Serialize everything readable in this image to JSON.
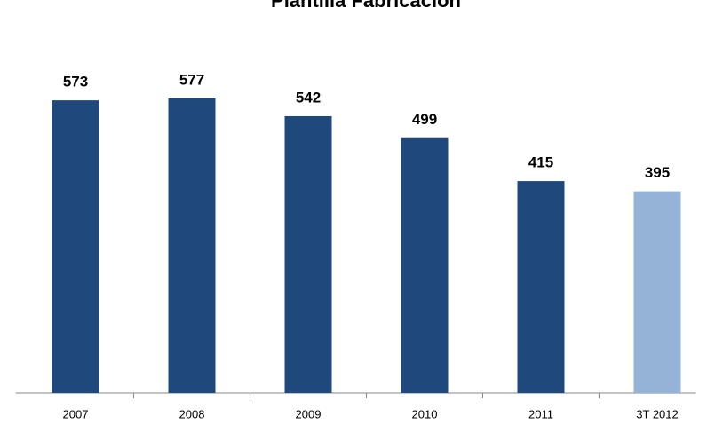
{
  "chart_data": {
    "type": "bar",
    "title": "Plantilla Fabricación",
    "categories": [
      "2007",
      "2008",
      "2009",
      "2010",
      "2011",
      "3T 2012"
    ],
    "values": [
      573,
      577,
      542,
      499,
      415,
      395
    ],
    "colors": [
      "#1f497d",
      "#1f497d",
      "#1f497d",
      "#1f497d",
      "#1f497d",
      "#95b3d7"
    ],
    "ylim": [
      0,
      700
    ]
  }
}
